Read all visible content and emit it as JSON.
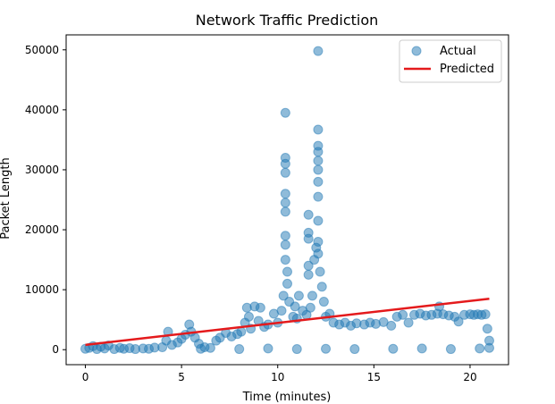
{
  "chart_data": {
    "type": "scatter",
    "title": "Network Traffic Prediction",
    "xlabel": "Time (minutes)",
    "ylabel": "Packet Length",
    "xlim": [
      -1,
      22
    ],
    "ylim": [
      -2500,
      52500
    ],
    "x_ticks": [
      0,
      5,
      10,
      15,
      20
    ],
    "x_tick_labels": [
      "0",
      "5",
      "10",
      "15",
      "20"
    ],
    "y_ticks": [
      0,
      10000,
      20000,
      30000,
      40000,
      50000
    ],
    "y_tick_labels": [
      "0",
      "10000",
      "20000",
      "30000",
      "40000",
      "50000"
    ],
    "grid": false,
    "legend_position": "top-right",
    "colors": {
      "actual": "#1f77b4",
      "predicted": "#e41a1c"
    },
    "series": [
      {
        "name": "Actual",
        "kind": "scatter",
        "approximate": true,
        "points": [
          [
            0.0,
            150
          ],
          [
            0.2,
            300
          ],
          [
            0.4,
            600
          ],
          [
            0.6,
            100
          ],
          [
            0.8,
            500
          ],
          [
            1.0,
            200
          ],
          [
            1.2,
            700
          ],
          [
            1.5,
            100
          ],
          [
            1.8,
            300
          ],
          [
            2.0,
            150
          ],
          [
            2.3,
            250
          ],
          [
            2.6,
            100
          ],
          [
            3.0,
            200
          ],
          [
            3.3,
            150
          ],
          [
            3.6,
            350
          ],
          [
            4.0,
            400
          ],
          [
            4.2,
            1500
          ],
          [
            4.3,
            3000
          ],
          [
            4.5,
            800
          ],
          [
            4.8,
            1200
          ],
          [
            5.0,
            1800
          ],
          [
            5.2,
            2500
          ],
          [
            5.4,
            4200
          ],
          [
            5.5,
            3000
          ],
          [
            5.7,
            2000
          ],
          [
            5.9,
            1000
          ],
          [
            6.2,
            400
          ],
          [
            6.5,
            300
          ],
          [
            6.8,
            1500
          ],
          [
            7.0,
            2000
          ],
          [
            7.3,
            2800
          ],
          [
            7.6,
            2200
          ],
          [
            7.9,
            2600
          ],
          [
            8.1,
            3000
          ],
          [
            8.3,
            4500
          ],
          [
            8.4,
            7000
          ],
          [
            8.5,
            5500
          ],
          [
            8.6,
            3500
          ],
          [
            8.8,
            7200
          ],
          [
            9.0,
            4800
          ],
          [
            9.1,
            7000
          ],
          [
            9.3,
            3800
          ],
          [
            9.5,
            4200
          ],
          [
            9.8,
            6000
          ],
          [
            10.0,
            4500
          ],
          [
            10.2,
            6500
          ],
          [
            10.3,
            9000
          ],
          [
            10.4,
            15000
          ],
          [
            10.4,
            17500
          ],
          [
            10.4,
            19000
          ],
          [
            10.4,
            23000
          ],
          [
            10.4,
            24500
          ],
          [
            10.4,
            26000
          ],
          [
            10.4,
            29500
          ],
          [
            10.4,
            31000
          ],
          [
            10.4,
            32000
          ],
          [
            10.4,
            39500
          ],
          [
            10.5,
            13000
          ],
          [
            10.5,
            11000
          ],
          [
            10.6,
            8000
          ],
          [
            10.8,
            5500
          ],
          [
            10.9,
            7200
          ],
          [
            11.0,
            5200
          ],
          [
            11.1,
            9000
          ],
          [
            11.3,
            6500
          ],
          [
            11.5,
            5800
          ],
          [
            11.6,
            12500
          ],
          [
            11.6,
            14000
          ],
          [
            11.6,
            22500
          ],
          [
            11.6,
            18500
          ],
          [
            11.6,
            19500
          ],
          [
            11.7,
            7000
          ],
          [
            11.8,
            9000
          ],
          [
            11.9,
            15000
          ],
          [
            12.0,
            17000
          ],
          [
            12.1,
            16000
          ],
          [
            12.1,
            18000
          ],
          [
            12.1,
            21500
          ],
          [
            12.1,
            25500
          ],
          [
            12.1,
            28000
          ],
          [
            12.1,
            30000
          ],
          [
            12.1,
            31500
          ],
          [
            12.1,
            33000
          ],
          [
            12.1,
            34000
          ],
          [
            12.1,
            36700
          ],
          [
            12.1,
            49800
          ],
          [
            12.2,
            13000
          ],
          [
            12.3,
            10500
          ],
          [
            12.4,
            8000
          ],
          [
            12.5,
            5500
          ],
          [
            12.7,
            6000
          ],
          [
            12.9,
            4500
          ],
          [
            13.2,
            4200
          ],
          [
            13.5,
            4500
          ],
          [
            13.8,
            4000
          ],
          [
            14.1,
            4400
          ],
          [
            14.5,
            4200
          ],
          [
            14.8,
            4500
          ],
          [
            15.1,
            4300
          ],
          [
            15.5,
            4600
          ],
          [
            15.9,
            4000
          ],
          [
            16.2,
            5500
          ],
          [
            16.5,
            5800
          ],
          [
            16.8,
            4500
          ],
          [
            17.1,
            5800
          ],
          [
            17.4,
            6000
          ],
          [
            17.7,
            5700
          ],
          [
            18.0,
            5800
          ],
          [
            18.3,
            6000
          ],
          [
            18.4,
            7200
          ],
          [
            18.6,
            5900
          ],
          [
            18.9,
            5700
          ],
          [
            19.2,
            5500
          ],
          [
            19.4,
            4700
          ],
          [
            19.7,
            5800
          ],
          [
            20.0,
            5900
          ],
          [
            20.2,
            5800
          ],
          [
            20.4,
            5900
          ],
          [
            20.6,
            5800
          ],
          [
            20.8,
            5900
          ],
          [
            20.9,
            3500
          ],
          [
            21.0,
            1500
          ],
          [
            21.0,
            300
          ],
          [
            20.5,
            200
          ],
          [
            19.0,
            100
          ],
          [
            17.5,
            200
          ],
          [
            16.0,
            150
          ],
          [
            14.0,
            100
          ],
          [
            12.5,
            150
          ],
          [
            11.0,
            100
          ],
          [
            9.5,
            200
          ],
          [
            8.0,
            100
          ],
          [
            6.0,
            150
          ]
        ]
      },
      {
        "name": "Predicted",
        "kind": "line",
        "x": [
          0.0,
          21.0
        ],
        "y": [
          800,
          8500
        ]
      }
    ]
  }
}
